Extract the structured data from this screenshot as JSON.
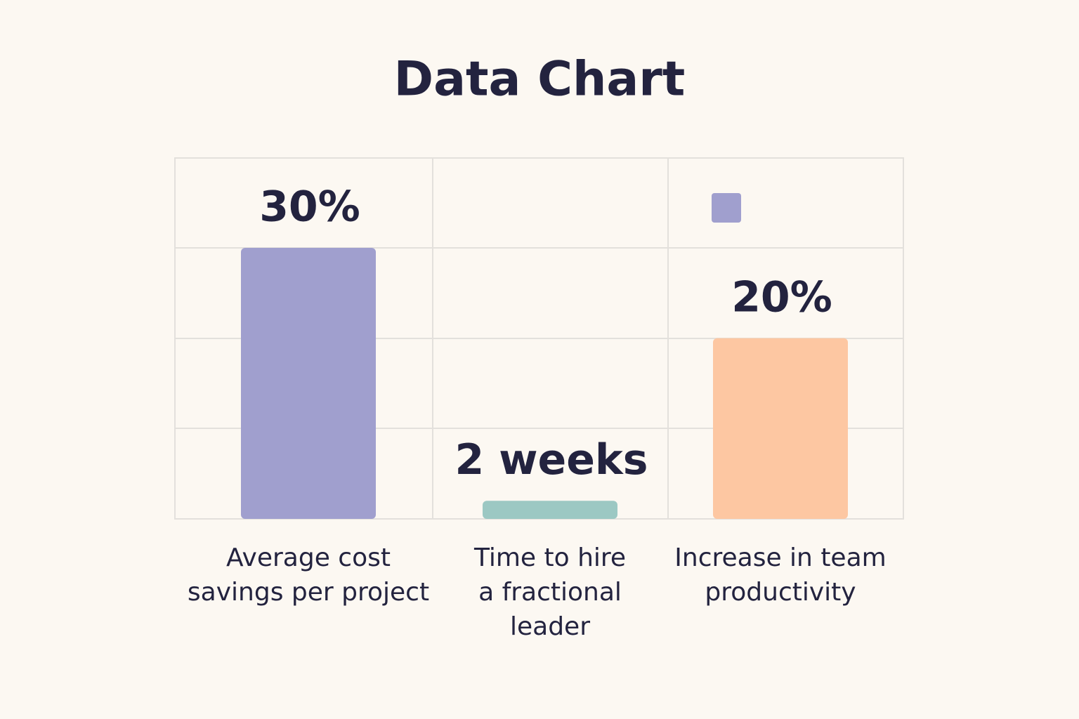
{
  "chart_data": {
    "type": "bar",
    "title": "Data Chart",
    "categories": [
      "Average cost\nsavings per project",
      "Time to hire\na fractional\nleader",
      "Increase in team\nproductivity"
    ],
    "values": [
      30,
      2,
      20
    ],
    "value_labels": [
      "30%",
      "2 weeks",
      "20%"
    ],
    "colors": [
      "#a09fce",
      "#9cc8c3",
      "#fdc7a2"
    ]
  }
}
